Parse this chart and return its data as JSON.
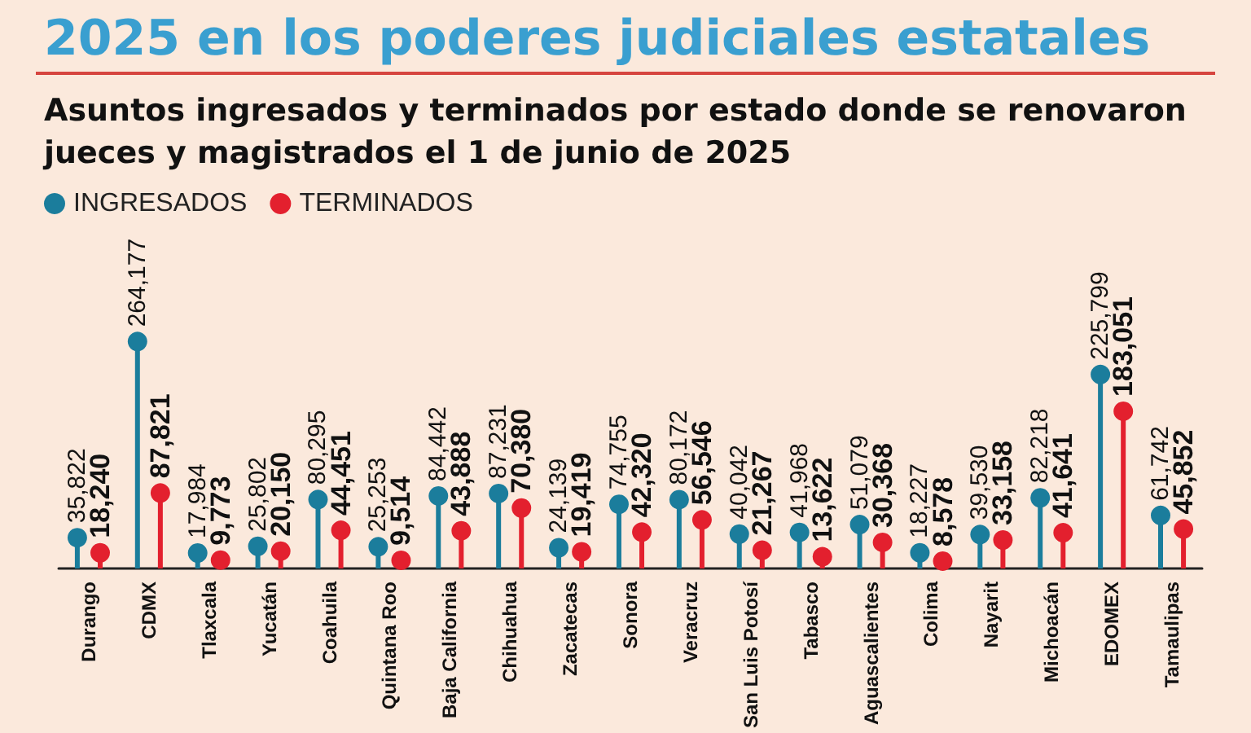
{
  "chart_data": {
    "type": "lollipop",
    "title": "2025 en los poderes judiciales estatales",
    "subtitle": "Asuntos ingresados y terminados por estado donde se renovaron jueces y magistrados el 1 de junio de 2025",
    "categories": [
      "Durango",
      "CDMX",
      "Tlaxcala",
      "Yucatán",
      "Coahuila",
      "Quintana Roo",
      "Baja California",
      "Chihuahua",
      "Zacatecas",
      "Sonora",
      "Veracruz",
      "San Luis Potosí",
      "Tabasco",
      "Aguascalientes",
      "Colima",
      "Nayarit",
      "Michoacán",
      "EDOMEX",
      "Tamaulipas"
    ],
    "series": [
      {
        "name": "INGRESADOS",
        "color": "#1b7d9c",
        "values": [
          35822,
          264177,
          17984,
          25802,
          80295,
          25253,
          84442,
          87231,
          24139,
          74755,
          80172,
          40042,
          41968,
          51079,
          18227,
          39530,
          82218,
          225799,
          61742
        ],
        "value_labels": [
          "35,822",
          "264,177",
          "17,984",
          "25,802",
          "80,295",
          "25,253",
          "84,442",
          "87,231",
          "24,139",
          "74,755",
          "80,172",
          "40,042",
          "41,968",
          "51,079",
          "18,227",
          "39,530",
          "82,218",
          "225,799",
          "61,742"
        ]
      },
      {
        "name": "TERMINADOS",
        "color": "#e3202e",
        "values": [
          18240,
          87821,
          9773,
          20150,
          44451,
          9514,
          43888,
          70380,
          19419,
          42320,
          56546,
          21267,
          13622,
          30368,
          8578,
          33158,
          41641,
          183051,
          45852
        ],
        "value_labels": [
          "18,240",
          "87,821",
          "9,773",
          "20,150",
          "44,451",
          "9,514",
          "43,888",
          "70,380",
          "19,419",
          "42,320",
          "56,546",
          "21,267",
          "13,622",
          "30,368",
          "8,578",
          "33,158",
          "41,641",
          "183,051",
          "45,852"
        ]
      }
    ],
    "legend": "top left",
    "marker": "circle"
  }
}
